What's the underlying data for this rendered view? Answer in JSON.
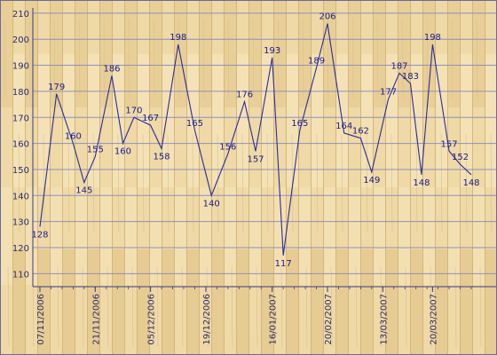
{
  "chart_data": {
    "type": "line",
    "title": "",
    "xlabel": "",
    "ylabel": "",
    "ylim": [
      105,
      212
    ],
    "y_ticks": [
      110,
      120,
      130,
      140,
      150,
      160,
      170,
      180,
      190,
      200,
      210
    ],
    "grid": "horizontal",
    "legend": "none",
    "colors": {
      "line": "#2b2b9a",
      "grid": "#8f8fb8",
      "axis": "#3a3a8a",
      "text": "#2a2a70",
      "wood_light": "#f1dcaa",
      "wood_dark": "#d9bd83"
    },
    "x_tick_labels": [
      "07/11/2006",
      "21/11/2006",
      "05/12/2006",
      "19/12/2006",
      "16/01/2007",
      "20/02/2007",
      "13/03/2007",
      "20/03/2007"
    ],
    "x_tick_index": [
      0,
      10,
      20,
      30,
      42,
      52,
      62,
      71
    ],
    "x_count": 78,
    "series": [
      {
        "points": [
          {
            "i": 0,
            "y": 128,
            "label": "128"
          },
          {
            "i": 3,
            "y": 179,
            "label": "179"
          },
          {
            "i": 6,
            "y": 160,
            "label": "160"
          },
          {
            "i": 8,
            "y": 145,
            "label": "145"
          },
          {
            "i": 10,
            "y": 155,
            "label": "155"
          },
          {
            "i": 13,
            "y": 186,
            "label": "186"
          },
          {
            "i": 15,
            "y": 160,
            "label": "160"
          },
          {
            "i": 17,
            "y": 170,
            "label": "170"
          },
          {
            "i": 20,
            "y": 167,
            "label": "167"
          },
          {
            "i": 22,
            "y": 158,
            "label": "158"
          },
          {
            "i": 25,
            "y": 198,
            "label": "198"
          },
          {
            "i": 28,
            "y": 165,
            "label": "165"
          },
          {
            "i": 31,
            "y": 140,
            "label": "140"
          },
          {
            "i": 34,
            "y": 156,
            "label": "156"
          },
          {
            "i": 37,
            "y": 176,
            "label": "176"
          },
          {
            "i": 39,
            "y": 157,
            "label": "157"
          },
          {
            "i": 42,
            "y": 193,
            "label": "193"
          },
          {
            "i": 44,
            "y": 117,
            "label": "117"
          },
          {
            "i": 47,
            "y": 165,
            "label": "165"
          },
          {
            "i": 50,
            "y": 189,
            "label": "189"
          },
          {
            "i": 52,
            "y": 206,
            "label": "206"
          },
          {
            "i": 55,
            "y": 164,
            "label": "164"
          },
          {
            "i": 58,
            "y": 162,
            "label": "162"
          },
          {
            "i": 60,
            "y": 149,
            "label": "149"
          },
          {
            "i": 63,
            "y": 177,
            "label": "177"
          },
          {
            "i": 65,
            "y": 187,
            "label": "187"
          },
          {
            "i": 67,
            "y": 183,
            "label": "183"
          },
          {
            "i": 69,
            "y": 148,
            "label": "148"
          },
          {
            "i": 71,
            "y": 198,
            "label": "198"
          },
          {
            "i": 74,
            "y": 157,
            "label": "157"
          },
          {
            "i": 76,
            "y": 152,
            "label": "152"
          },
          {
            "i": 78,
            "y": 148,
            "label": "148"
          }
        ]
      }
    ]
  }
}
